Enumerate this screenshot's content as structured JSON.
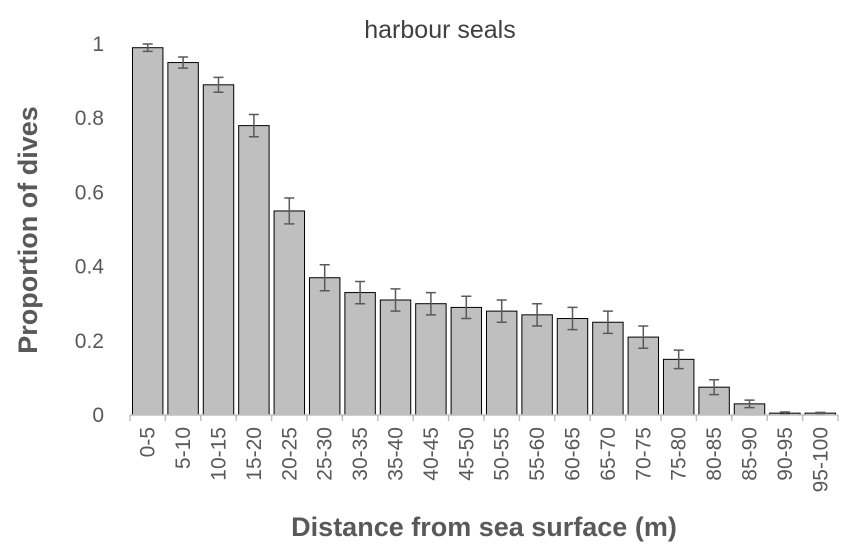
{
  "chart_data": {
    "type": "bar",
    "title": "harbour seals",
    "x_label": "Distance from sea surface (m)",
    "y_label": "Proportion of dives",
    "categories": [
      "0-5",
      "5-10",
      "10-15",
      "15-20",
      "20-25",
      "25-30",
      "30-35",
      "35-40",
      "40-45",
      "45-50",
      "50-55",
      "55-60",
      "60-65",
      "65-70",
      "70-75",
      "75-80",
      "80-85",
      "85-90",
      "90-95",
      "95-100"
    ],
    "values": [
      0.99,
      0.95,
      0.89,
      0.78,
      0.55,
      0.37,
      0.33,
      0.31,
      0.3,
      0.29,
      0.28,
      0.27,
      0.26,
      0.25,
      0.21,
      0.15,
      0.075,
      0.03,
      0.005,
      0.005
    ],
    "errors": [
      0.01,
      0.015,
      0.02,
      0.03,
      0.035,
      0.035,
      0.03,
      0.03,
      0.03,
      0.03,
      0.03,
      0.03,
      0.03,
      0.03,
      0.03,
      0.025,
      0.02,
      0.01,
      0.003,
      0.002
    ],
    "color": "#bfbfbf",
    "ylim": [
      0,
      1
    ],
    "yticks": [
      0,
      0.2,
      0.4,
      0.6,
      0.8,
      1
    ]
  }
}
